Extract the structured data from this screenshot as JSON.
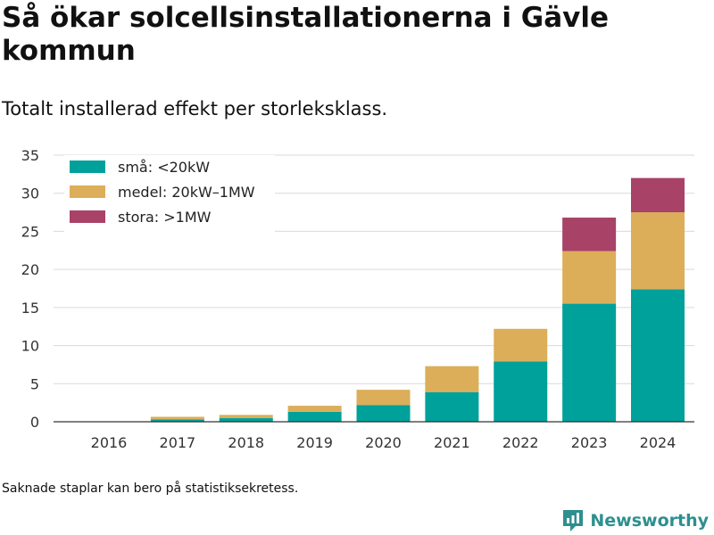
{
  "title": "Så ökar solcellsinstallationerna i Gävle kommun",
  "subtitle": "Totalt installerad effekt per storleksklass.",
  "note": "Saknade staplar kan bero på statistiksekretess.",
  "brand": {
    "name": "Newsworthy",
    "icon": "newsworthy-logo-icon",
    "color": "#2e8f8f"
  },
  "chart_data": {
    "type": "bar",
    "stacked": true,
    "categories": [
      "2016",
      "2017",
      "2018",
      "2019",
      "2020",
      "2021",
      "2022",
      "2023",
      "2024"
    ],
    "series": [
      {
        "name": "små: <20kW",
        "color": "#00a19a",
        "values": [
          0.05,
          0.3,
          0.5,
          1.3,
          2.2,
          3.9,
          7.9,
          15.5,
          17.4
        ]
      },
      {
        "name": "medel: 20kW–1MW",
        "color": "#dcae5a",
        "values": [
          0.0,
          0.35,
          0.4,
          0.8,
          2.0,
          3.4,
          4.3,
          6.9,
          10.1
        ]
      },
      {
        "name": "stora: >1MW",
        "color": "#a84266",
        "values": [
          0.0,
          0.0,
          0.0,
          0.0,
          0.0,
          0.0,
          0.0,
          4.4,
          4.5
        ]
      }
    ],
    "ylim": [
      0,
      35
    ],
    "yticks": [
      "0",
      "5",
      "10",
      "15",
      "20",
      "25",
      "30",
      "35"
    ],
    "grid": true,
    "legend": "top-left"
  }
}
